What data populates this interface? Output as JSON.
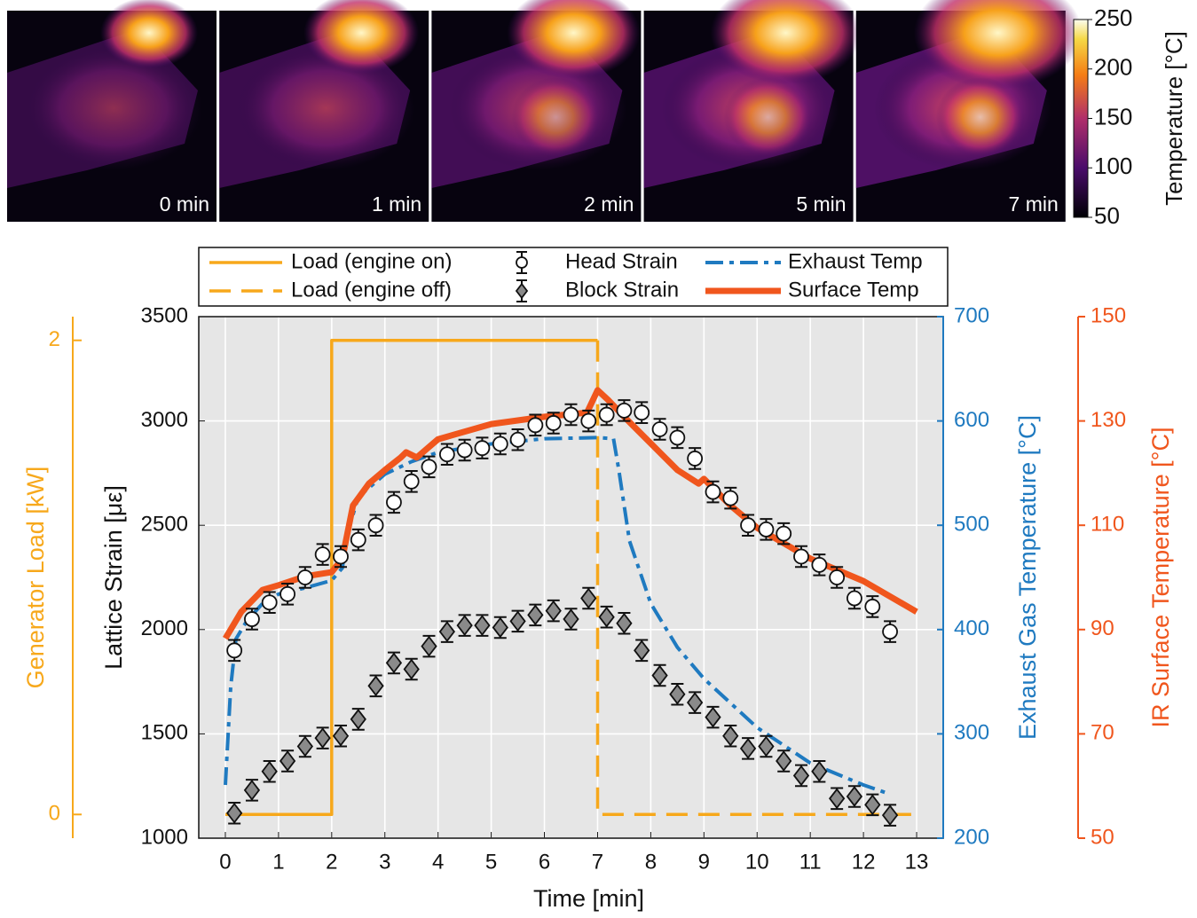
{
  "thermal_images": {
    "labels": [
      "0 min",
      "1 min",
      "2 min",
      "5 min",
      "7 min"
    ],
    "colorbar": {
      "label": "Temperature [°C]",
      "lim": [
        50,
        250
      ],
      "ticks": [
        50,
        100,
        150,
        200,
        250
      ]
    }
  },
  "chart_data": {
    "type": "line",
    "xlabel": "Time [min]",
    "ylabel": "Lattice Strain [με]",
    "y2label": "Exhaust Gas Temperature [°C]",
    "y3label": "IR Surface Temperature [°C]",
    "y4label": "Generator Load [kW]",
    "xlim": [
      -0.5,
      13.5
    ],
    "xticks": [
      0,
      1,
      2,
      3,
      4,
      5,
      6,
      7,
      8,
      9,
      10,
      11,
      12,
      13
    ],
    "ylim": [
      1000,
      3500
    ],
    "yticks": [
      1000,
      1500,
      2000,
      2500,
      3000,
      3500
    ],
    "y2lim": [
      200,
      700
    ],
    "y2ticks": [
      200,
      300,
      400,
      500,
      600,
      700
    ],
    "y3lim": [
      50,
      150
    ],
    "y3ticks": [
      50,
      70,
      90,
      110,
      130,
      150
    ],
    "y4lim": [
      -0.1,
      2.1
    ],
    "y4ticks": [
      0,
      2
    ],
    "axis_colors": {
      "y": "#111111",
      "y2": "#1f7ac0",
      "y3": "#f0561d",
      "y4": "#f7a81b"
    },
    "grid": true,
    "series": [
      {
        "name": "Load (engine on)",
        "color": "#f7a81b",
        "axis": "y4",
        "style": "solid",
        "x": [
          0,
          2,
          2,
          7
        ],
        "values": [
          0,
          0,
          2,
          2
        ]
      },
      {
        "name": "Load (engine off)",
        "color": "#f7a81b",
        "axis": "y4",
        "style": "dashed",
        "x": [
          7,
          7,
          13
        ],
        "values": [
          2,
          0,
          0
        ]
      },
      {
        "name": "Head Strain",
        "color": "#ffffff",
        "axis": "y",
        "marker": "circle",
        "error": 50,
        "x": [
          0.17,
          0.5,
          0.83,
          1.17,
          1.5,
          1.83,
          2.17,
          2.5,
          2.83,
          3.17,
          3.5,
          3.83,
          4.17,
          4.5,
          4.83,
          5.17,
          5.5,
          5.83,
          6.17,
          6.5,
          6.83,
          7.17,
          7.5,
          7.83,
          8.17,
          8.5,
          8.83,
          9.17,
          9.5,
          9.83,
          10.17,
          10.5,
          10.83,
          11.17,
          11.5,
          11.83,
          12.17,
          12.5
        ],
        "values": [
          1900,
          2050,
          2130,
          2170,
          2250,
          2360,
          2350,
          2430,
          2500,
          2610,
          2710,
          2780,
          2840,
          2860,
          2870,
          2890,
          2910,
          2980,
          2990,
          3030,
          3000,
          3030,
          3050,
          3040,
          2960,
          2920,
          2820,
          2660,
          2630,
          2500,
          2480,
          2460,
          2350,
          2310,
          2250,
          2150,
          2110,
          1990
        ]
      },
      {
        "name": "Block Strain",
        "color": "#8a8a8a",
        "axis": "y",
        "marker": "diamond",
        "error": 50,
        "x": [
          0.17,
          0.5,
          0.83,
          1.17,
          1.5,
          1.83,
          2.17,
          2.5,
          2.83,
          3.17,
          3.5,
          3.83,
          4.17,
          4.5,
          4.83,
          5.17,
          5.5,
          5.83,
          6.17,
          6.5,
          6.83,
          7.17,
          7.5,
          7.83,
          8.17,
          8.5,
          8.83,
          9.17,
          9.5,
          9.83,
          10.17,
          10.5,
          10.83,
          11.17,
          11.5,
          11.83,
          12.17,
          12.5
        ],
        "values": [
          1120,
          1230,
          1320,
          1370,
          1440,
          1480,
          1490,
          1570,
          1730,
          1840,
          1810,
          1920,
          1990,
          2020,
          2020,
          2010,
          2040,
          2070,
          2090,
          2050,
          2150,
          2060,
          2030,
          1900,
          1780,
          1690,
          1650,
          1580,
          1490,
          1430,
          1440,
          1370,
          1300,
          1320,
          1190,
          1200,
          1160,
          1110
        ]
      },
      {
        "name": "Exhaust Temp",
        "color": "#1f7ac0",
        "axis": "y2",
        "style": "dashdot",
        "x": [
          0,
          0.1,
          0.2,
          0.4,
          0.7,
          1,
          1.5,
          2,
          2.2,
          2.3,
          2.5,
          3,
          3.5,
          4,
          5,
          6,
          7,
          7.3,
          7.4,
          7.6,
          8,
          8.5,
          9,
          10,
          11,
          12,
          12.4
        ],
        "values": [
          251,
          345,
          391,
          408,
          425,
          434,
          440,
          447,
          459,
          493,
          527,
          549,
          561,
          570,
          578,
          583,
          584,
          583,
          553,
          485,
          425,
          383,
          353,
          306,
          272,
          251,
          244
        ]
      },
      {
        "name": "Surface Temp",
        "color": "#f0561d",
        "axis": "y3",
        "style": "thick",
        "x": [
          0,
          0.3,
          0.7,
          1,
          1.5,
          2,
          2.2,
          2.4,
          2.7,
          3,
          3.3,
          3.4,
          3.6,
          4,
          5,
          6,
          6.8,
          7,
          7.2,
          7.5,
          8,
          8.5,
          8.9,
          9,
          9.5,
          10,
          11,
          12,
          13
        ],
        "values": [
          88.3,
          93.4,
          97.6,
          98.5,
          100.2,
          101,
          103.6,
          113.8,
          118,
          120.6,
          123,
          124,
          123,
          126.5,
          129.4,
          130.8,
          131.6,
          135.9,
          134,
          130.8,
          125.7,
          120.6,
          118,
          118.9,
          113.8,
          109.5,
          103.6,
          99.3,
          93.4
        ]
      }
    ]
  }
}
